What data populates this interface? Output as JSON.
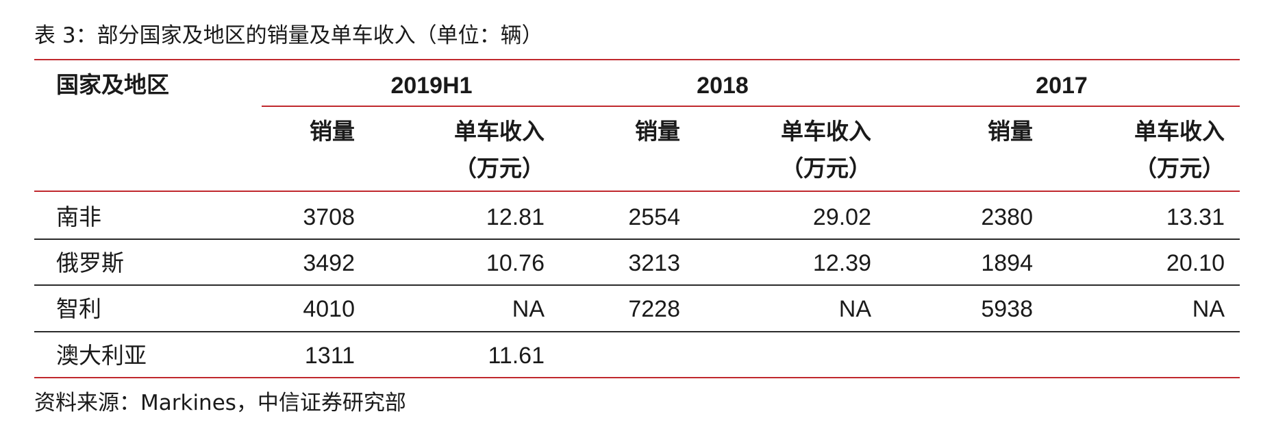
{
  "title": "表 3：部分国家及地区的销量及单车收入（单位：辆）",
  "source": "资料来源：Markines，中信证券研究部",
  "header": {
    "region_label": "国家及地区",
    "years": [
      "2019H1",
      "2018",
      "2017"
    ],
    "sales_label": "销量",
    "revenue_label_line1": "单车收入",
    "revenue_label_line2": "（万元）"
  },
  "rows": [
    {
      "region": "南非",
      "values": [
        "3708",
        "12.81",
        "2554",
        "29.02",
        "2380",
        "13.31"
      ]
    },
    {
      "region": "俄罗斯",
      "values": [
        "3492",
        "10.76",
        "3213",
        "12.39",
        "1894",
        "20.10"
      ]
    },
    {
      "region": "智利",
      "values": [
        "4010",
        "NA",
        "7228",
        "NA",
        "5938",
        "NA"
      ]
    },
    {
      "region": "澳大利亚",
      "values": [
        "1311",
        "11.61",
        "",
        "",
        "",
        ""
      ]
    }
  ],
  "colors": {
    "rule_red": "#c0282d",
    "rule_dark": "#2a2a2a"
  }
}
